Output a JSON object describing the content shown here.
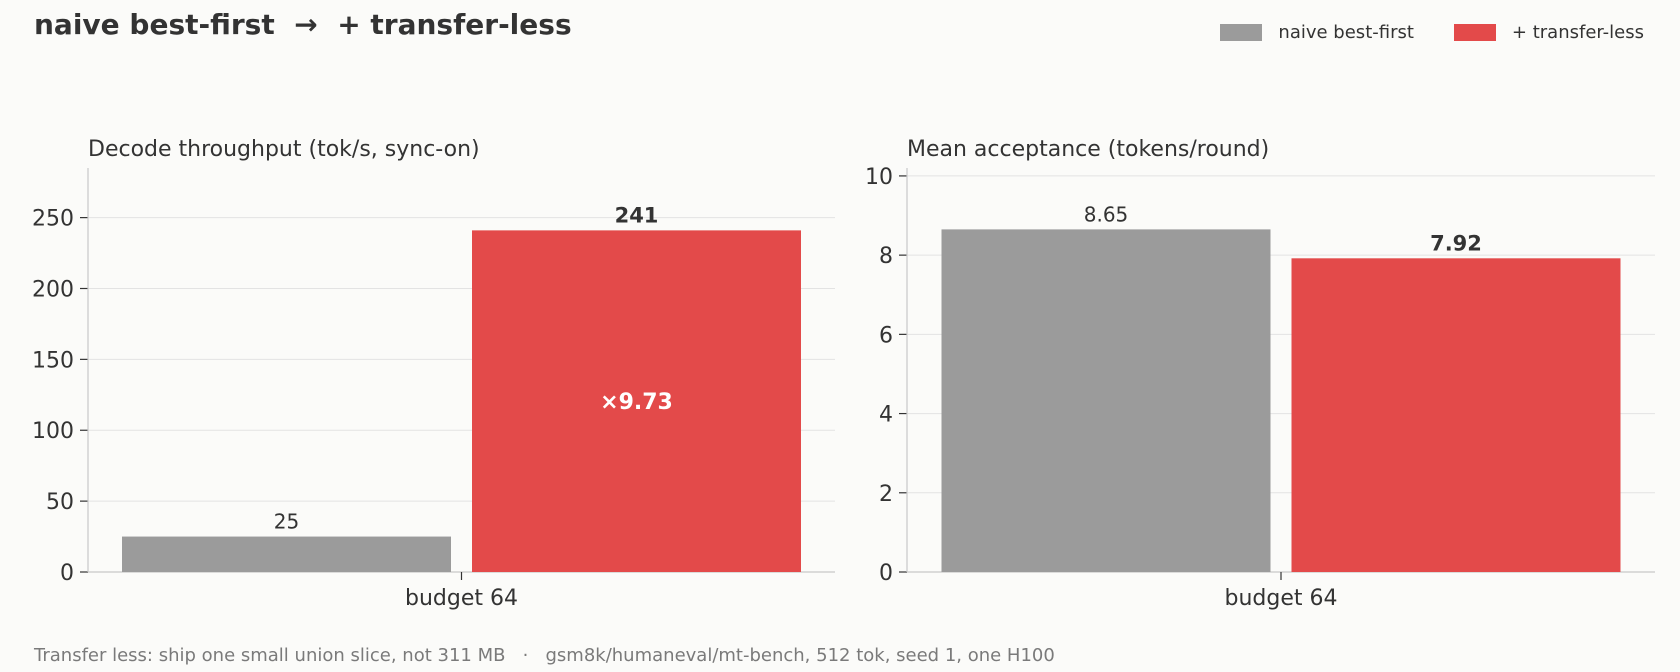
{
  "title": "naive best-first  →  + transfer-less",
  "legend": {
    "items": [
      {
        "label": "naive best-first",
        "color": "#9b9b9b"
      },
      {
        "label": "+ transfer-less",
        "color": "#e34a4a"
      }
    ]
  },
  "footer": "Transfer less: ship one small union slice, not 311 MB   ·   gsm8k/humaneval/mt-bench, 512 tok, seed 1, one H100",
  "chart_data": [
    {
      "type": "bar",
      "title": "Decode throughput (tok/s, sync-on)",
      "categories": [
        "budget 64"
      ],
      "series": [
        {
          "name": "naive best-first",
          "values": [
            25
          ],
          "color": "#9b9b9b"
        },
        {
          "name": "+ transfer-less",
          "values": [
            241
          ],
          "color": "#e34a4a"
        }
      ],
      "value_labels": [
        "25",
        "241"
      ],
      "ratio_label": "×9.73",
      "yticks": [
        0,
        50,
        100,
        150,
        200,
        250
      ],
      "ylim": [
        0,
        285
      ],
      "grid": true,
      "legend": "top-right"
    },
    {
      "type": "bar",
      "title": "Mean acceptance (tokens/round)",
      "categories": [
        "budget 64"
      ],
      "series": [
        {
          "name": "naive best-first",
          "values": [
            8.65
          ],
          "color": "#9b9b9b"
        },
        {
          "name": "+ transfer-less",
          "values": [
            7.92
          ],
          "color": "#e34a4a"
        }
      ],
      "value_labels": [
        "8.65",
        "7.92"
      ],
      "yticks": [
        0,
        2,
        4,
        6,
        8,
        10
      ],
      "ylim": [
        0,
        10.2
      ],
      "grid": true
    }
  ]
}
